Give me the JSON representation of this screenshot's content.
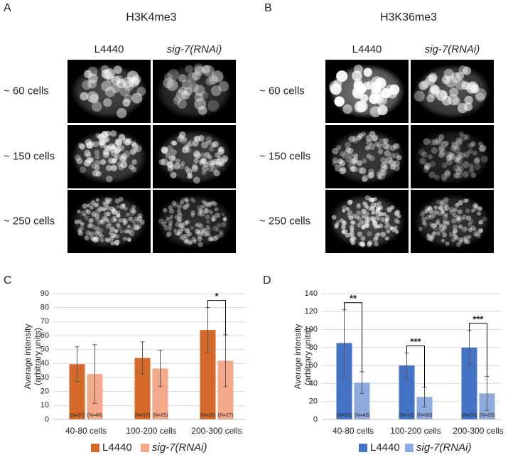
{
  "panels": [
    {
      "letter": "A",
      "title": "H3K4me3",
      "columns": [
        "L4440",
        "sig-7(RNAi)"
      ],
      "rows": [
        "~ 60 cells",
        "~ 150 cells",
        "~ 250 cells"
      ]
    },
    {
      "letter": "B",
      "title": "H3K36me3",
      "columns": [
        "L4440",
        "sig-7(RNAi)"
      ],
      "rows": [
        "~ 60 cells",
        "~ 150 cells",
        "~ 250 cells"
      ]
    }
  ],
  "chart_data": [
    {
      "type": "bar",
      "letter": "C",
      "y_label": [
        "Average intensity",
        "(arbitrary units)"
      ],
      "categories": [
        "40-80 cells",
        "100-200 cells",
        "200-300 cells"
      ],
      "ylim": [
        0,
        90
      ],
      "yticks": [
        0,
        10,
        20,
        30,
        40,
        50,
        60,
        70,
        80,
        90
      ],
      "grid": true,
      "series": [
        {
          "name": "L4440",
          "color": "#d4692a",
          "values": [
            39.5,
            44,
            64
          ],
          "errors": [
            12.5,
            11.5,
            16
          ],
          "n_labels": [
            "(N=37)",
            "(N=17)",
            "(N=29)"
          ]
        },
        {
          "name": "sig-7(RNAi)",
          "color": "#f4a98a",
          "values": [
            32.5,
            36.5,
            42
          ],
          "errors": [
            21,
            13,
            18.5
          ],
          "n_labels": [
            "(N=48)",
            "(N=29)",
            "(N=27)"
          ]
        }
      ],
      "significance": [
        null,
        null,
        "*"
      ]
    },
    {
      "type": "bar",
      "letter": "D",
      "y_label": [
        "Average intensity",
        "(arbitrary units)"
      ],
      "categories": [
        "40-80 cells",
        "100-200 cells",
        "200-300 cells"
      ],
      "ylim": [
        0,
        140
      ],
      "yticks": [
        0,
        20,
        40,
        60,
        80,
        100,
        120,
        140
      ],
      "grid": true,
      "series": [
        {
          "name": "L4440",
          "color": "#4472c4",
          "values": [
            85,
            60,
            80
          ],
          "errors": [
            37,
            14,
            19
          ],
          "n_labels": [
            "(N=30)",
            "(N=16)",
            "(N=30)"
          ]
        },
        {
          "name": "sig-7(RNAi)",
          "color": "#8faadc",
          "values": [
            41,
            25,
            29
          ],
          "errors": [
            12,
            11,
            19
          ],
          "n_labels": [
            "(N=43)",
            "(N=30)",
            "(N=29)"
          ]
        }
      ],
      "significance": [
        "**",
        "***",
        "***"
      ]
    }
  ]
}
